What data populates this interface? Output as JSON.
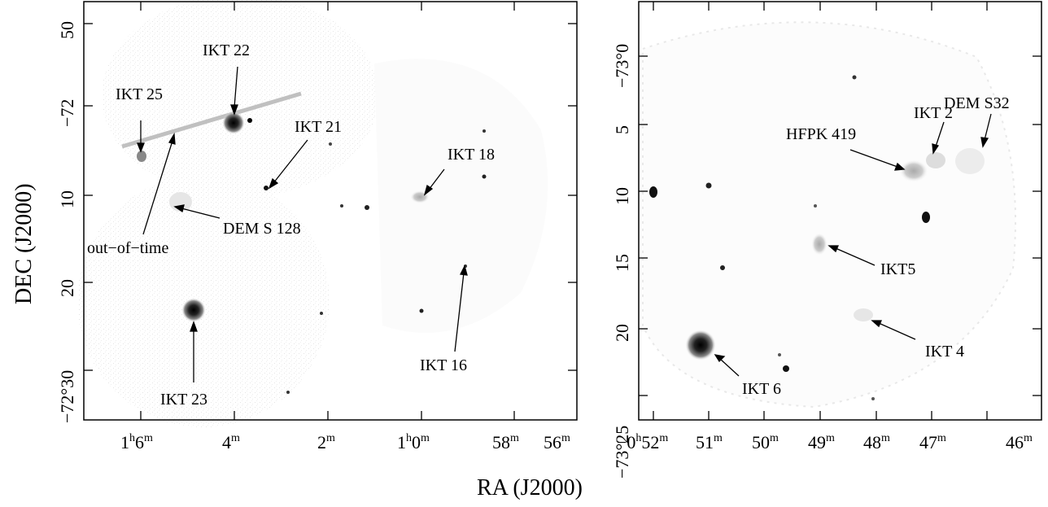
{
  "figure": {
    "left_panel": {
      "labels": {
        "ikt22": "IKT 22",
        "ikt25": "IKT 25",
        "ikt21": "IKT 21",
        "ikt18": "IKT 18",
        "dem_s128": "DEM S 128",
        "out_of_time": "out−of−time",
        "ikt16": "IKT 16",
        "ikt23": "IKT 23"
      },
      "ra_ticks": [
        {
          "main": "1",
          "sup1": "h",
          "mid": "6",
          "sup2": "m"
        },
        {
          "main": "4",
          "sup2": "m"
        },
        {
          "main": "2",
          "sup2": "m"
        },
        {
          "main": "1",
          "sup1": "h",
          "mid": "0",
          "sup2": "m"
        },
        {
          "main": "58",
          "sup2": "m"
        },
        {
          "main": "56",
          "sup2": "m"
        }
      ],
      "dec_ticks": [
        "50",
        "−72°0",
        "−72",
        "10",
        "20",
        "−72°30"
      ],
      "dec_prime": "′"
    },
    "right_panel": {
      "labels": {
        "dem_s32": "DEM S32",
        "ikt2": "IKT 2",
        "hfpk419": "HFPK 419",
        "ikt5": "IKT5",
        "ikt4": "IKT 4",
        "ikt6": "IKT 6"
      },
      "ra_ticks": [
        {
          "main": "−0",
          "sup1": "h",
          "mid": "52",
          "sup2": "m"
        },
        {
          "main": "51",
          "sup2": "m"
        },
        {
          "main": "50",
          "sup2": "m"
        },
        {
          "main": "49",
          "sup2": "m"
        },
        {
          "main": "48",
          "sup2": "m"
        },
        {
          "main": "47",
          "sup2": "m"
        },
        {
          "main": "46",
          "sup2": "m"
        }
      ],
      "dec_ticks": [
        "−73°0",
        "5",
        "10",
        "15",
        "20",
        "−73°25"
      ]
    },
    "axis_labels": {
      "x": "RA (J2000)",
      "y": "DEC (J2000)"
    },
    "colors": {
      "background": "#ffffff",
      "ink": "#000000",
      "diffuse": "#d8d8d8"
    }
  }
}
